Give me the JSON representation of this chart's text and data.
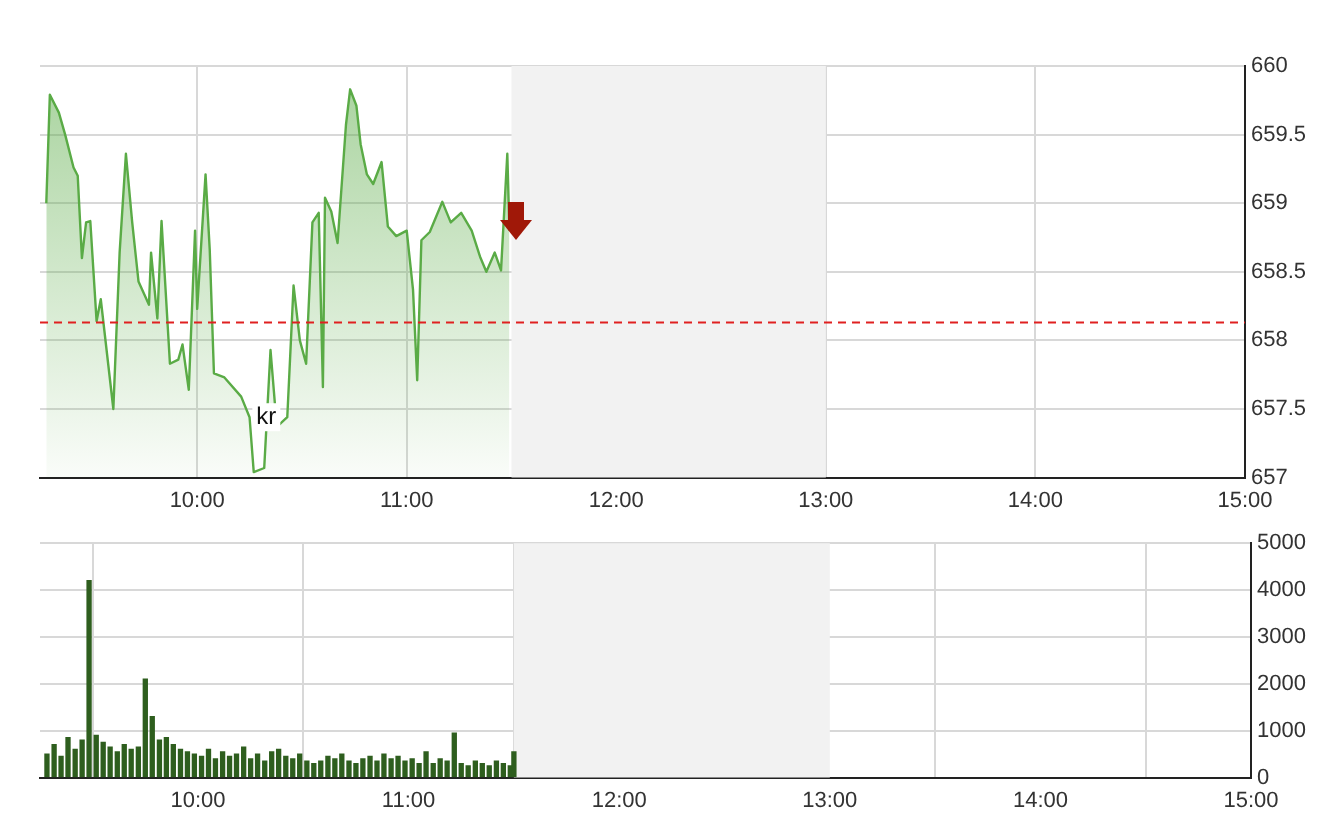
{
  "chart_data": [
    {
      "type": "area",
      "x": [
        9.28,
        9.297,
        9.34,
        9.37,
        9.41,
        9.43,
        9.45,
        9.47,
        9.49,
        9.52,
        9.54,
        9.6,
        9.63,
        9.66,
        9.69,
        9.72,
        9.77,
        9.78,
        9.81,
        9.83,
        9.87,
        9.91,
        9.93,
        9.96,
        9.99,
        10.0,
        10.04,
        10.06,
        10.08,
        10.13,
        10.21,
        10.25,
        10.27,
        10.32,
        10.35,
        10.38,
        10.43,
        10.46,
        10.49,
        10.52,
        10.55,
        10.58,
        10.6,
        10.61,
        10.64,
        10.67,
        10.71,
        10.73,
        10.76,
        10.78,
        10.81,
        10.84,
        10.88,
        10.91,
        10.95,
        11.0,
        11.03,
        11.05,
        11.07,
        11.11,
        11.17,
        11.21,
        11.26,
        11.31,
        11.35,
        11.38,
        11.42,
        11.45,
        11.48,
        11.49
      ],
      "series": [
        {
          "color": "#5aab46",
          "values": [
            659.0,
            659.79,
            659.66,
            659.5,
            659.26,
            659.2,
            658.6,
            658.86,
            658.87,
            658.14,
            658.3,
            657.5,
            658.64,
            659.36,
            658.86,
            658.43,
            658.26,
            658.64,
            658.16,
            658.87,
            657.83,
            657.86,
            657.97,
            657.64,
            658.8,
            658.23,
            659.21,
            658.66,
            657.76,
            657.73,
            657.59,
            657.44,
            657.04,
            657.07,
            657.93,
            657.37,
            657.44,
            658.4,
            658.0,
            657.83,
            658.86,
            658.93,
            657.66,
            659.04,
            658.94,
            658.71,
            659.57,
            659.83,
            659.71,
            659.43,
            659.21,
            659.14,
            659.3,
            658.83,
            658.76,
            658.8,
            658.37,
            657.71,
            658.73,
            658.79,
            659.01,
            658.86,
            658.93,
            658.8,
            658.61,
            658.5,
            658.64,
            658.51,
            659.36,
            658.8
          ]
        }
      ],
      "xlim": [
        9.25,
        15
      ],
      "xticks": [
        {
          "value": 10,
          "label": "10:00"
        },
        {
          "value": 11,
          "label": "11:00"
        },
        {
          "value": 12,
          "label": "12:00"
        },
        {
          "value": 13,
          "label": "13:00"
        },
        {
          "value": 14,
          "label": "14:00"
        },
        {
          "value": 15,
          "label": "15:00"
        }
      ],
      "ylim": [
        657,
        660
      ],
      "yticks": [
        657,
        657.5,
        658,
        658.5,
        659,
        659.5,
        660
      ],
      "grid": true,
      "legend": false,
      "marker": "none",
      "line_style": "solid",
      "ref_lines": [
        {
          "axis": "y",
          "value": 658.13,
          "color": "#e02020",
          "line_style": "dashed"
        }
      ],
      "bands": [
        {
          "axis": "x",
          "from": 11.5,
          "to": 13,
          "color": "#f2f2f2"
        }
      ],
      "annotations": [
        {
          "text": "kr",
          "x": 10.33,
          "y": 657.44
        }
      ]
    },
    {
      "type": "bar",
      "x": [
        9.283,
        9.317,
        9.35,
        9.383,
        9.417,
        9.45,
        9.483,
        9.517,
        9.55,
        9.583,
        9.617,
        9.65,
        9.683,
        9.717,
        9.75,
        9.783,
        9.817,
        9.85,
        9.883,
        9.917,
        9.95,
        9.983,
        10.017,
        10.05,
        10.083,
        10.117,
        10.15,
        10.183,
        10.217,
        10.25,
        10.283,
        10.317,
        10.35,
        10.383,
        10.417,
        10.45,
        10.483,
        10.517,
        10.55,
        10.583,
        10.617,
        10.65,
        10.683,
        10.717,
        10.75,
        10.783,
        10.817,
        10.85,
        10.883,
        10.917,
        10.95,
        10.983,
        11.017,
        11.05,
        11.083,
        11.117,
        11.15,
        11.183,
        11.217,
        11.25,
        11.283,
        11.317,
        11.35,
        11.383,
        11.417,
        11.45,
        11.483,
        11.5
      ],
      "series": [
        {
          "color": "#2e5e1e",
          "values": [
            500,
            700,
            450,
            850,
            600,
            800,
            4200,
            900,
            750,
            650,
            550,
            700,
            600,
            650,
            2100,
            1300,
            800,
            850,
            700,
            600,
            550,
            500,
            450,
            600,
            400,
            550,
            450,
            500,
            650,
            400,
            500,
            350,
            550,
            600,
            450,
            400,
            500,
            350,
            300,
            350,
            450,
            400,
            500,
            350,
            300,
            400,
            450,
            350,
            500,
            400,
            450,
            350,
            400,
            300,
            550,
            300,
            400,
            350,
            950,
            300,
            250,
            350,
            300,
            250,
            350,
            300,
            250,
            550
          ]
        }
      ],
      "xlim": [
        9.25,
        15
      ],
      "xticks": [
        {
          "value": 10,
          "label": "10:00"
        },
        {
          "value": 11,
          "label": "11:00"
        },
        {
          "value": 12,
          "label": "12:00"
        },
        {
          "value": 13,
          "label": "13:00"
        },
        {
          "value": 14,
          "label": "14:00"
        },
        {
          "value": 15,
          "label": "15:00"
        }
      ],
      "ylim": [
        0,
        5000
      ],
      "yticks": [
        0,
        1000,
        2000,
        3000,
        4000,
        5000
      ],
      "grid": true,
      "legend": false,
      "bands": [
        {
          "axis": "x",
          "from": 11.5,
          "to": 13,
          "color": "#f2f2f2"
        }
      ]
    }
  ]
}
